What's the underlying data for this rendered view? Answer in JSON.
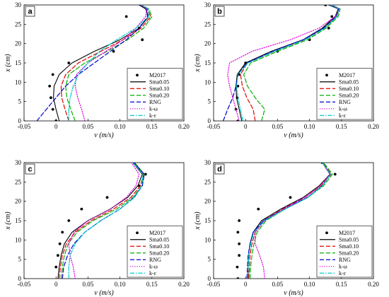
{
  "chart_data": [
    {
      "type": "line",
      "panel_label": "a",
      "xlabel": "v (m/s)",
      "ylabel": "x (cm)",
      "xlim": [
        -0.05,
        0.2
      ],
      "ylim": [
        0,
        30
      ],
      "xticks": [
        "-0.05",
        "0",
        "0.05",
        "0.10",
        "0.15",
        "0.20"
      ],
      "yticks": [
        "0",
        "5",
        "10",
        "15",
        "20",
        "25",
        "30"
      ],
      "legend_position": "bottom-right",
      "series": [
        {
          "name": "M2017",
          "style": "points",
          "color": "#000000",
          "x": [
            0.0,
            -0.005,
            -0.008,
            -0.01,
            -0.005,
            0.02,
            0.09,
            0.11,
            0.13,
            0.135
          ],
          "y": [
            0,
            3,
            6,
            9,
            12,
            15,
            18,
            27,
            24,
            21
          ]
        },
        {
          "name": "Sma0.05",
          "style": "solid",
          "color": "#000000",
          "x": [
            0.005,
            0.0,
            -0.004,
            -0.003,
            0.005,
            0.025,
            0.06,
            0.1,
            0.13,
            0.145,
            0.14,
            0.13
          ],
          "y": [
            0,
            3,
            6,
            9,
            12,
            15,
            18,
            21,
            24,
            27,
            29,
            30
          ]
        },
        {
          "name": "Sma0.10",
          "style": "dash",
          "color": "#e00000",
          "x": [
            0.02,
            0.014,
            0.009,
            0.008,
            0.015,
            0.035,
            0.07,
            0.105,
            0.133,
            0.148,
            0.143,
            0.132
          ],
          "y": [
            0,
            3,
            6,
            9,
            12,
            15,
            18,
            21,
            24,
            27,
            29,
            30
          ]
        },
        {
          "name": "Sma0.20",
          "style": "dash",
          "color": "#00b000",
          "x": [
            0.03,
            0.023,
            0.017,
            0.015,
            0.02,
            0.045,
            0.08,
            0.112,
            0.137,
            0.15,
            0.145,
            0.134
          ],
          "y": [
            0,
            3,
            6,
            9,
            12,
            15,
            18,
            21,
            24,
            27,
            29,
            30
          ]
        },
        {
          "name": "RNG",
          "style": "dash",
          "color": "#0000cc",
          "x": [
            -0.03,
            -0.015,
            0.0,
            0.015,
            0.035,
            0.06,
            0.085,
            0.11,
            0.13,
            0.143,
            0.142,
            0.132
          ],
          "y": [
            0,
            3,
            6,
            9,
            12,
            15,
            18,
            21,
            24,
            27,
            29,
            30
          ]
        },
        {
          "name": "k-ω",
          "style": "dot",
          "color": "#dd00dd",
          "x": [
            0.045,
            0.04,
            0.034,
            0.03,
            0.032,
            0.05,
            0.078,
            0.105,
            0.125,
            0.14,
            0.142,
            0.133
          ],
          "y": [
            0,
            3,
            6,
            9,
            12,
            15,
            18,
            21,
            24,
            27,
            29,
            30
          ]
        },
        {
          "name": "k-ε",
          "style": "dashdot",
          "color": "#00cccc",
          "x": [
            0.02,
            0.02,
            0.022,
            0.027,
            0.035,
            0.05,
            0.068,
            0.095,
            0.125,
            0.145,
            0.144,
            0.133
          ],
          "y": [
            0,
            3,
            6,
            9,
            12,
            15,
            18,
            21,
            24,
            27,
            29,
            30
          ]
        }
      ]
    },
    {
      "type": "line",
      "panel_label": "b",
      "xlabel": "v (m/s)",
      "ylabel": "x (cm)",
      "xlim": [
        -0.05,
        0.2
      ],
      "ylim": [
        0,
        30
      ],
      "xticks": [
        "-0.05",
        "0",
        "0.05",
        "0.10",
        "0.15",
        "0.20"
      ],
      "yticks": [
        "0",
        "5",
        "10",
        "15",
        "20",
        "25",
        "30"
      ],
      "legend_position": "bottom-right",
      "series": [
        {
          "name": "M2017",
          "style": "points",
          "color": "#000000",
          "x": [
            -0.012,
            -0.015,
            -0.013,
            -0.012,
            -0.01,
            0.0,
            0.05,
            0.1,
            0.13,
            0.135,
            0.125
          ],
          "y": [
            0,
            3,
            6,
            9,
            12,
            15,
            18,
            21,
            24,
            27,
            30
          ]
        },
        {
          "name": "Sma0.05",
          "style": "solid",
          "color": "#000000",
          "x": [
            -0.006,
            -0.01,
            -0.014,
            -0.015,
            -0.013,
            0.0,
            0.04,
            0.09,
            0.12,
            0.14,
            0.145,
            0.13
          ],
          "y": [
            0,
            3,
            6,
            9,
            12,
            15,
            18,
            21,
            24,
            27,
            29,
            30
          ]
        },
        {
          "name": "Sma0.10",
          "style": "dash",
          "color": "#e00000",
          "x": [
            0.015,
            0.012,
            0.002,
            -0.005,
            -0.008,
            0.003,
            0.045,
            0.093,
            0.123,
            0.142,
            0.147,
            0.132
          ],
          "y": [
            0,
            3,
            6,
            9,
            12,
            15,
            18,
            21,
            24,
            27,
            29,
            30
          ]
        },
        {
          "name": "Sma0.20",
          "style": "dash",
          "color": "#00b000",
          "x": [
            0.025,
            0.03,
            0.015,
            0.003,
            -0.003,
            0.008,
            0.05,
            0.097,
            0.126,
            0.145,
            0.148,
            0.134
          ],
          "y": [
            0,
            3,
            6,
            9,
            12,
            15,
            18,
            21,
            24,
            27,
            29,
            30
          ]
        },
        {
          "name": "RNG",
          "style": "dash",
          "color": "#0000cc",
          "x": [
            -0.035,
            -0.028,
            -0.02,
            -0.015,
            -0.012,
            0.002,
            0.042,
            0.09,
            0.122,
            0.142,
            0.146,
            0.132
          ],
          "y": [
            0,
            3,
            6,
            9,
            12,
            15,
            18,
            21,
            24,
            27,
            29,
            30
          ]
        },
        {
          "name": "k-ω",
          "style": "dot",
          "color": "#dd00dd",
          "x": [
            -0.01,
            -0.015,
            -0.02,
            -0.025,
            -0.028,
            -0.025,
            0.01,
            0.07,
            0.115,
            0.14,
            0.148,
            0.135
          ],
          "y": [
            0,
            3,
            6,
            9,
            12,
            15,
            18,
            21,
            24,
            27,
            29,
            30
          ]
        },
        {
          "name": "k-ε",
          "style": "dashdot",
          "color": "#00cccc",
          "x": [
            -0.004,
            -0.008,
            -0.012,
            -0.014,
            -0.012,
            0.004,
            0.045,
            0.093,
            0.124,
            0.143,
            0.147,
            0.133
          ],
          "y": [
            0,
            3,
            6,
            9,
            12,
            15,
            18,
            21,
            24,
            27,
            29,
            30
          ]
        }
      ]
    },
    {
      "type": "line",
      "panel_label": "c",
      "xlabel": "v (m/s)",
      "ylabel": "x (cm)",
      "xlim": [
        -0.05,
        0.2
      ],
      "ylim": [
        0,
        30
      ],
      "xticks": [
        "-0.05",
        "0",
        "0.05",
        "0.10",
        "0.15",
        "0.20"
      ],
      "yticks": [
        "0",
        "5",
        "10",
        "15",
        "20",
        "25",
        "30"
      ],
      "legend_position": "bottom-right",
      "series": [
        {
          "name": "M2017",
          "style": "points",
          "color": "#000000",
          "x": [
            0.0,
            0.003,
            0.006,
            0.01,
            0.02,
            0.04,
            0.08,
            0.13,
            0.14
          ],
          "y": [
            3,
            6,
            9,
            12,
            15,
            18,
            21,
            24,
            27
          ]
        },
        {
          "name": "Sma0.05",
          "style": "solid",
          "color": "#000000",
          "x": [
            0.003,
            0.005,
            0.008,
            0.013,
            0.025,
            0.05,
            0.085,
            0.112,
            0.128,
            0.135,
            0.12
          ],
          "y": [
            0,
            3,
            6,
            9,
            12,
            15,
            18,
            21,
            24,
            27,
            30
          ]
        },
        {
          "name": "Sma0.10",
          "style": "dash",
          "color": "#e00000",
          "x": [
            0.005,
            0.007,
            0.01,
            0.016,
            0.03,
            0.055,
            0.09,
            0.117,
            0.132,
            0.137,
            0.122
          ],
          "y": [
            0,
            3,
            6,
            9,
            12,
            15,
            18,
            21,
            24,
            27,
            30
          ]
        },
        {
          "name": "Sma0.20",
          "style": "dash",
          "color": "#00b000",
          "x": [
            0.008,
            0.01,
            0.013,
            0.019,
            0.033,
            0.058,
            0.095,
            0.12,
            0.134,
            0.138,
            0.123
          ],
          "y": [
            0,
            3,
            6,
            9,
            12,
            15,
            18,
            21,
            24,
            27,
            30
          ]
        },
        {
          "name": "RNG",
          "style": "dash",
          "color": "#0000cc",
          "x": [
            0.01,
            0.012,
            0.018,
            0.028,
            0.045,
            0.07,
            0.1,
            0.122,
            0.135,
            0.138,
            0.122
          ],
          "y": [
            0,
            3,
            6,
            9,
            12,
            15,
            18,
            21,
            24,
            27,
            30
          ]
        },
        {
          "name": "k-ω",
          "style": "dot",
          "color": "#dd00dd",
          "x": [
            0.03,
            0.027,
            0.022,
            0.02,
            0.028,
            0.05,
            0.085,
            0.11,
            0.125,
            0.13,
            0.118
          ],
          "y": [
            0,
            3,
            6,
            9,
            12,
            15,
            18,
            21,
            24,
            27,
            30
          ]
        },
        {
          "name": "k-ε",
          "style": "dashdot",
          "color": "#00cccc",
          "x": [
            0.02,
            0.02,
            0.022,
            0.03,
            0.045,
            0.07,
            0.1,
            0.123,
            0.134,
            0.136,
            0.12
          ],
          "y": [
            0,
            3,
            6,
            9,
            12,
            15,
            18,
            21,
            24,
            27,
            30
          ]
        }
      ]
    },
    {
      "type": "line",
      "panel_label": "d",
      "xlabel": "v (m/s)",
      "ylabel": "x (cm)",
      "xlim": [
        -0.05,
        0.2
      ],
      "ylim": [
        0,
        30
      ],
      "xticks": [
        "-0.05",
        "0",
        "0.05",
        "0.10",
        "0.15",
        "0.20"
      ],
      "yticks": [
        "0",
        "5",
        "10",
        "15",
        "20",
        "25",
        "30"
      ],
      "legend_position": "bottom-right",
      "series": [
        {
          "name": "M2017",
          "style": "points",
          "color": "#000000",
          "x": [
            -0.012,
            -0.013,
            -0.01,
            -0.01,
            -0.012,
            -0.01,
            0.02,
            0.07,
            0.14,
            0.12
          ],
          "y": [
            0,
            3,
            6,
            9,
            12,
            15,
            18,
            21,
            27,
            30
          ]
        },
        {
          "name": "Sma0.05",
          "style": "solid",
          "color": "#000000",
          "x": [
            0.004,
            0.004,
            0.005,
            0.007,
            0.012,
            0.025,
            0.055,
            0.09,
            0.115,
            0.132,
            0.12
          ],
          "y": [
            0,
            3,
            6,
            9,
            12,
            15,
            18,
            21,
            24,
            27,
            30
          ]
        },
        {
          "name": "Sma0.10",
          "style": "dash",
          "color": "#e00000",
          "x": [
            0.005,
            0.006,
            0.007,
            0.01,
            0.015,
            0.028,
            0.058,
            0.093,
            0.118,
            0.134,
            0.121
          ],
          "y": [
            0,
            3,
            6,
            9,
            12,
            15,
            18,
            21,
            24,
            27,
            30
          ]
        },
        {
          "name": "Sma0.20",
          "style": "dash",
          "color": "#00b000",
          "x": [
            0.007,
            0.008,
            0.01,
            0.013,
            0.018,
            0.032,
            0.062,
            0.097,
            0.122,
            0.136,
            0.122
          ],
          "y": [
            0,
            3,
            6,
            9,
            12,
            15,
            18,
            21,
            24,
            27,
            30
          ]
        },
        {
          "name": "RNG",
          "style": "dash",
          "color": "#0000cc",
          "x": [
            0.002,
            0.003,
            0.004,
            0.007,
            0.012,
            0.028,
            0.06,
            0.097,
            0.12,
            0.133,
            0.12
          ],
          "y": [
            0,
            3,
            6,
            9,
            12,
            15,
            18,
            21,
            24,
            27,
            30
          ]
        },
        {
          "name": "k-ω",
          "style": "dot",
          "color": "#dd00dd",
          "x": [
            0.03,
            0.028,
            0.022,
            0.015,
            0.015,
            0.03,
            0.06,
            0.093,
            0.117,
            0.132,
            0.12
          ],
          "y": [
            0,
            3,
            6,
            9,
            12,
            15,
            18,
            21,
            24,
            27,
            30
          ]
        },
        {
          "name": "k-ε",
          "style": "dashdot",
          "color": "#00cccc",
          "x": [
            0.003,
            0.004,
            0.005,
            0.008,
            0.013,
            0.03,
            0.062,
            0.098,
            0.12,
            0.133,
            0.12
          ],
          "y": [
            0,
            3,
            6,
            9,
            12,
            15,
            18,
            21,
            24,
            27,
            30
          ]
        }
      ]
    }
  ]
}
